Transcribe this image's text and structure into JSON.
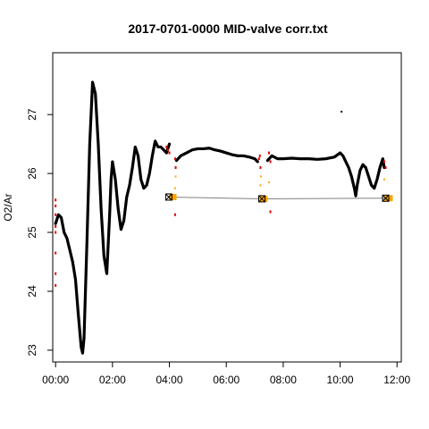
{
  "chart_data": {
    "type": "line",
    "title": "2017-0701-0000 MID-valve corr.txt",
    "xlabel": "",
    "ylabel": "O2/Ar",
    "x_unit": "hours",
    "xlim": [
      -0.1,
      12.15
    ],
    "ylim": [
      22.8,
      28.05
    ],
    "x_ticks": [
      {
        "value": 0,
        "label": "00:00"
      },
      {
        "value": 2,
        "label": "02:00"
      },
      {
        "value": 4,
        "label": "04:00"
      },
      {
        "value": 6,
        "label": "06:00"
      },
      {
        "value": 8,
        "label": "08:00"
      },
      {
        "value": 10,
        "label": "10:00"
      },
      {
        "value": 12,
        "label": "12:00"
      }
    ],
    "y_ticks": [
      {
        "value": 23,
        "label": "23"
      },
      {
        "value": 24,
        "label": "24"
      },
      {
        "value": 25,
        "label": "25"
      },
      {
        "value": 26,
        "label": "26"
      },
      {
        "value": 27,
        "label": "27"
      }
    ],
    "series": [
      {
        "role": "main-trace",
        "color": "#000000",
        "x": [
          0.0,
          0.1,
          0.2,
          0.3,
          0.4,
          0.5,
          0.6,
          0.7,
          0.8,
          0.9,
          0.95,
          1.0,
          1.1,
          1.2,
          1.3,
          1.4,
          1.5,
          1.6,
          1.7,
          1.8,
          1.9,
          1.95,
          2.0,
          2.1,
          2.2,
          2.3,
          2.4,
          2.5,
          2.6,
          2.7,
          2.8,
          2.9,
          3.0,
          3.1,
          3.2,
          3.3,
          3.4,
          3.5,
          3.6,
          3.7,
          3.8,
          3.9,
          4.0
        ],
        "y": [
          25.15,
          25.3,
          25.25,
          25.0,
          24.9,
          24.7,
          24.5,
          24.2,
          23.6,
          23.05,
          22.95,
          23.2,
          24.8,
          26.5,
          27.55,
          27.35,
          26.5,
          25.4,
          24.6,
          24.3,
          25.3,
          25.9,
          26.2,
          25.9,
          25.4,
          25.05,
          25.2,
          25.6,
          25.8,
          26.1,
          26.45,
          26.3,
          25.9,
          25.75,
          25.8,
          26.0,
          26.3,
          26.55,
          26.45,
          26.45,
          26.4,
          26.35,
          26.5
        ]
      },
      {
        "role": "main-trace",
        "color": "#000000",
        "x": [
          4.25,
          4.4,
          4.6,
          4.8,
          5.0,
          5.2,
          5.4,
          5.6,
          5.8,
          6.0,
          6.2,
          6.4,
          6.6,
          6.8,
          7.0,
          7.1
        ],
        "y": [
          26.22,
          26.3,
          26.35,
          26.4,
          26.42,
          26.42,
          26.43,
          26.4,
          26.38,
          26.35,
          26.32,
          26.3,
          26.3,
          26.28,
          26.25,
          26.2
        ]
      },
      {
        "role": "main-trace",
        "color": "#000000",
        "x": [
          7.45,
          7.6,
          7.8,
          8.0,
          8.3,
          8.6,
          8.9,
          9.2,
          9.5,
          9.8,
          10.0,
          10.1,
          10.2,
          10.3,
          10.4,
          10.5,
          10.55,
          10.6,
          10.7,
          10.8,
          10.9,
          11.0,
          11.1,
          11.2,
          11.3,
          11.4,
          11.5,
          11.55
        ],
        "y": [
          26.22,
          26.3,
          26.25,
          26.25,
          26.26,
          26.25,
          26.25,
          26.24,
          26.25,
          26.28,
          26.35,
          26.3,
          26.2,
          26.1,
          25.95,
          25.75,
          25.62,
          25.8,
          26.05,
          26.15,
          26.1,
          25.95,
          25.8,
          25.75,
          25.9,
          26.1,
          26.25,
          26.1
        ]
      }
    ],
    "calibration_line": {
      "color": "#808080",
      "x": [
        3.98,
        7.25,
        11.6
      ],
      "y": [
        25.6,
        25.57,
        25.58
      ]
    },
    "calibration_markers": [
      {
        "x": 3.98,
        "y": 25.6
      },
      {
        "x": 7.25,
        "y": 25.57
      },
      {
        "x": 11.6,
        "y": 25.58
      }
    ],
    "orange_segments": [
      {
        "x_start": 3.98,
        "x_end": 4.25,
        "y": 25.6,
        "color": "#FFA500"
      },
      {
        "x_start": 7.18,
        "x_end": 7.45,
        "y": 25.57,
        "color": "#FFA500"
      },
      {
        "x_start": 11.55,
        "x_end": 11.85,
        "y": 25.58,
        "color": "#FFA500"
      }
    ],
    "red_points": [
      {
        "x": 0.0,
        "y": 25.55
      },
      {
        "x": 0.0,
        "y": 25.45
      },
      {
        "x": 0.0,
        "y": 25.3
      },
      {
        "x": 0.0,
        "y": 25.1
      },
      {
        "x": 0.0,
        "y": 25.0
      },
      {
        "x": 0.0,
        "y": 24.65
      },
      {
        "x": 0.0,
        "y": 24.3
      },
      {
        "x": 0.0,
        "y": 24.1
      },
      {
        "x": 3.9,
        "y": 26.45
      },
      {
        "x": 3.95,
        "y": 26.4
      },
      {
        "x": 4.0,
        "y": 26.35
      },
      {
        "x": 4.2,
        "y": 26.25
      },
      {
        "x": 4.22,
        "y": 26.1
      },
      {
        "x": 4.2,
        "y": 25.3
      },
      {
        "x": 7.15,
        "y": 26.25
      },
      {
        "x": 7.2,
        "y": 26.1
      },
      {
        "x": 7.18,
        "y": 26.3
      },
      {
        "x": 7.5,
        "y": 26.35
      },
      {
        "x": 7.55,
        "y": 26.2
      },
      {
        "x": 7.55,
        "y": 25.35
      },
      {
        "x": 11.55,
        "y": 26.2
      },
      {
        "x": 11.6,
        "y": 26.1
      }
    ],
    "orange_points": [
      {
        "x": 4.2,
        "y": 25.75
      },
      {
        "x": 4.22,
        "y": 25.95
      },
      {
        "x": 7.2,
        "y": 25.8
      },
      {
        "x": 7.22,
        "y": 25.95
      },
      {
        "x": 7.5,
        "y": 25.85
      },
      {
        "x": 11.55,
        "y": 25.9
      }
    ],
    "outlier_points": [
      {
        "x": 10.05,
        "y": 27.05
      }
    ]
  }
}
